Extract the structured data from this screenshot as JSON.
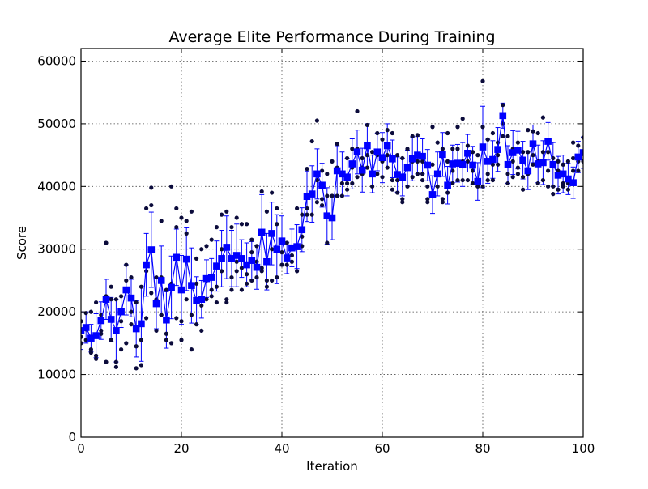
{
  "chart_data": {
    "type": "line",
    "title": "Average Elite Performance During Training",
    "xlabel": "Iteration",
    "ylabel": "Score",
    "xlim": [
      0,
      100
    ],
    "ylim": [
      0,
      62000
    ],
    "xticks": [
      0,
      20,
      40,
      60,
      80,
      100
    ],
    "yticks": [
      0,
      10000,
      20000,
      30000,
      40000,
      50000,
      60000
    ],
    "grid": true,
    "colors": {
      "mean_series": "#0000ff",
      "elite_points": "#0b0b3b",
      "axes": "#000000"
    },
    "series": [
      {
        "x": [
          0,
          1,
          2,
          3,
          4,
          5,
          6,
          7,
          8,
          9,
          10,
          11,
          12,
          13,
          14,
          15,
          16,
          17,
          18,
          19,
          20,
          21,
          22,
          23,
          24,
          25,
          26,
          27,
          28,
          29,
          30,
          31,
          32,
          33,
          34,
          35,
          36,
          37,
          38,
          39,
          40,
          41,
          42,
          43,
          44,
          45,
          46,
          47,
          48,
          49,
          50,
          51,
          52,
          53,
          54,
          55,
          56,
          57,
          58,
          59,
          60,
          61,
          62,
          63,
          64,
          65,
          66,
          67,
          68,
          69,
          70,
          71,
          72,
          73,
          74,
          75,
          76,
          77,
          78,
          79,
          80,
          81,
          82,
          83,
          84,
          85,
          86,
          87,
          88,
          89,
          90,
          91,
          92,
          93,
          94,
          95,
          96,
          97,
          98,
          99,
          100
        ],
        "y": [
          17000,
          17500,
          15800,
          16200,
          18600,
          22000,
          18800,
          17000,
          20000,
          23500,
          22200,
          17300,
          18100,
          27500,
          29900,
          21300,
          25000,
          18700,
          23900,
          28700,
          23500,
          28400,
          24200,
          21800,
          22000,
          25300,
          25500,
          27300,
          28500,
          30300,
          28500,
          29000,
          28500,
          27500,
          28200,
          27100,
          32700,
          28000,
          32500,
          30000,
          31300,
          28600,
          30200,
          30400,
          33100,
          38400,
          38800,
          42000,
          40200,
          35300,
          35000,
          42500,
          42000,
          41500,
          43600,
          45500,
          42600,
          46500,
          42000,
          45500,
          44600,
          46500,
          44400,
          41900,
          41500,
          43000,
          44400,
          45000,
          44800,
          43400,
          38700,
          42000,
          45100,
          40200,
          43600,
          43700,
          43500,
          45300,
          43400,
          40800,
          46300,
          44000,
          44300,
          45900,
          51300,
          43500,
          45400,
          45800,
          44200,
          42500,
          46800,
          43600,
          43800,
          47200,
          43500,
          41800,
          42000,
          41200,
          40600,
          44700,
          45400
        ],
        "err": [
          3000,
          2500,
          2200,
          3500,
          3000,
          3200,
          3500,
          5000,
          2500,
          4000,
          3000,
          4500,
          6000,
          5000,
          6000,
          4000,
          5500,
          4500,
          5000,
          4500,
          5500,
          5000,
          6000,
          3800,
          3000,
          3000,
          3000,
          4000,
          4500,
          5000,
          4500,
          5000,
          3000,
          3500,
          3000,
          3500,
          6000,
          4500,
          5000,
          5500,
          4000,
          2500,
          3000,
          3500,
          3500,
          4000,
          4500,
          4000,
          3500,
          4500,
          3500,
          4000,
          3500,
          3000,
          4000,
          3500,
          3500,
          3500,
          3000,
          3000,
          4000,
          3500,
          3000,
          2800,
          3000,
          2800,
          3500,
          3000,
          2800,
          2500,
          3000,
          3500,
          3500,
          3000,
          3000,
          3000,
          3500,
          3000,
          3000,
          3000,
          6500,
          3500,
          3000,
          3500,
          2000,
          3000,
          3500,
          3000,
          3000,
          3000,
          3000,
          3000,
          3500,
          3000,
          3500,
          3000,
          3000,
          2500,
          2500,
          2500,
          2500
        ]
      }
    ],
    "elite_points": [
      [
        0,
        16000
      ],
      [
        0,
        18500
      ],
      [
        0,
        15000
      ],
      [
        1,
        19800
      ],
      [
        1,
        17200
      ],
      [
        1,
        15500
      ],
      [
        2,
        20000
      ],
      [
        2,
        14000
      ],
      [
        2,
        13500
      ],
      [
        3,
        21500
      ],
      [
        3,
        13000
      ],
      [
        3,
        12500
      ],
      [
        4,
        19500
      ],
      [
        4,
        17000
      ],
      [
        4,
        16500
      ],
      [
        5,
        31000
      ],
      [
        5,
        22500
      ],
      [
        5,
        12000
      ],
      [
        6,
        24000
      ],
      [
        6,
        22000
      ],
      [
        6,
        15500
      ],
      [
        7,
        22000
      ],
      [
        7,
        12000
      ],
      [
        7,
        11200
      ],
      [
        8,
        22500
      ],
      [
        8,
        18500
      ],
      [
        8,
        14000
      ],
      [
        9,
        27500
      ],
      [
        9,
        25000
      ],
      [
        9,
        15000
      ],
      [
        10,
        25500
      ],
      [
        10,
        20000
      ],
      [
        10,
        18000
      ],
      [
        11,
        21500
      ],
      [
        11,
        14500
      ],
      [
        11,
        11000
      ],
      [
        12,
        24000
      ],
      [
        12,
        15500
      ],
      [
        12,
        11500
      ],
      [
        13,
        36500
      ],
      [
        13,
        26500
      ],
      [
        13,
        19000
      ],
      [
        14,
        39800
      ],
      [
        14,
        37000
      ],
      [
        14,
        23000
      ],
      [
        15,
        25500
      ],
      [
        15,
        22000
      ],
      [
        15,
        17000
      ],
      [
        16,
        34500
      ],
      [
        16,
        25500
      ],
      [
        16,
        19500
      ],
      [
        17,
        23500
      ],
      [
        17,
        16500
      ],
      [
        17,
        15500
      ],
      [
        18,
        40000
      ],
      [
        18,
        24500
      ],
      [
        18,
        15000
      ],
      [
        19,
        36500
      ],
      [
        19,
        33500
      ],
      [
        19,
        19000
      ],
      [
        20,
        35000
      ],
      [
        20,
        18500
      ],
      [
        20,
        15500
      ],
      [
        21,
        34500
      ],
      [
        21,
        32500
      ],
      [
        21,
        22000
      ],
      [
        22,
        36000
      ],
      [
        22,
        14000
      ],
      [
        22,
        19500
      ],
      [
        23,
        28500
      ],
      [
        23,
        24500
      ],
      [
        23,
        18000
      ],
      [
        24,
        30000
      ],
      [
        24,
        21000
      ],
      [
        24,
        17000
      ],
      [
        25,
        30500
      ],
      [
        25,
        25000
      ],
      [
        25,
        22000
      ],
      [
        26,
        31500
      ],
      [
        26,
        23500
      ],
      [
        26,
        22500
      ],
      [
        27,
        33500
      ],
      [
        27,
        24000
      ],
      [
        27,
        21500
      ],
      [
        28,
        35500
      ],
      [
        28,
        30000
      ],
      [
        28,
        26500
      ],
      [
        29,
        36000
      ],
      [
        29,
        22000
      ],
      [
        29,
        21500
      ],
      [
        30,
        33500
      ],
      [
        30,
        25500
      ],
      [
        30,
        23500
      ],
      [
        31,
        35000
      ],
      [
        31,
        28000
      ],
      [
        31,
        26500
      ],
      [
        32,
        34000
      ],
      [
        32,
        27000
      ],
      [
        32,
        23500
      ],
      [
        33,
        34000
      ],
      [
        33,
        26000
      ],
      [
        33,
        24500
      ],
      [
        34,
        31500
      ],
      [
        34,
        29500
      ],
      [
        34,
        25000
      ],
      [
        35,
        30500
      ],
      [
        35,
        28000
      ],
      [
        35,
        25500
      ],
      [
        36,
        39200
      ],
      [
        36,
        27000
      ],
      [
        36,
        26500
      ],
      [
        37,
        36000
      ],
      [
        37,
        24000
      ],
      [
        37,
        25000
      ],
      [
        38,
        39000
      ],
      [
        38,
        30000
      ],
      [
        38,
        25000
      ],
      [
        39,
        36500
      ],
      [
        39,
        34000
      ],
      [
        39,
        25500
      ],
      [
        40,
        31500
      ],
      [
        40,
        29500
      ],
      [
        40,
        27500
      ],
      [
        41,
        31000
      ],
      [
        41,
        28500
      ],
      [
        41,
        27500
      ],
      [
        42,
        30000
      ],
      [
        42,
        29000
      ],
      [
        42,
        28000
      ],
      [
        43,
        36500
      ],
      [
        43,
        30500
      ],
      [
        43,
        26500
      ],
      [
        44,
        35500
      ],
      [
        44,
        32000
      ],
      [
        44,
        30500
      ],
      [
        45,
        42800
      ],
      [
        45,
        36500
      ],
      [
        45,
        35500
      ],
      [
        46,
        47200
      ],
      [
        46,
        39000
      ],
      [
        46,
        35500
      ],
      [
        47,
        50500
      ],
      [
        47,
        41000
      ],
      [
        47,
        37500
      ],
      [
        48,
        42500
      ],
      [
        48,
        38000
      ],
      [
        48,
        37000
      ],
      [
        49,
        42000
      ],
      [
        49,
        38500
      ],
      [
        49,
        31000
      ],
      [
        50,
        44000
      ],
      [
        50,
        38500
      ],
      [
        50,
        35000
      ],
      [
        51,
        46800
      ],
      [
        51,
        43000
      ],
      [
        51,
        38500
      ],
      [
        52,
        42000
      ],
      [
        52,
        40500
      ],
      [
        52,
        38500
      ],
      [
        53,
        44500
      ],
      [
        53,
        40500
      ],
      [
        53,
        39500
      ],
      [
        54,
        46000
      ],
      [
        54,
        43000
      ],
      [
        54,
        40500
      ],
      [
        55,
        52000
      ],
      [
        55,
        46000
      ],
      [
        55,
        41500
      ],
      [
        56,
        44500
      ],
      [
        56,
        43000
      ],
      [
        56,
        42000
      ],
      [
        57,
        49800
      ],
      [
        57,
        45000
      ],
      [
        57,
        43000
      ],
      [
        58,
        45500
      ],
      [
        58,
        42000
      ],
      [
        58,
        40000
      ],
      [
        59,
        48500
      ],
      [
        59,
        45000
      ],
      [
        59,
        42000
      ],
      [
        60,
        47500
      ],
      [
        60,
        44000
      ],
      [
        60,
        41500
      ],
      [
        61,
        49000
      ],
      [
        61,
        45000
      ],
      [
        61,
        43000
      ],
      [
        62,
        48500
      ],
      [
        62,
        41000
      ],
      [
        62,
        39500
      ],
      [
        63,
        45000
      ],
      [
        63,
        41000
      ],
      [
        63,
        39000
      ],
      [
        64,
        44500
      ],
      [
        64,
        38000
      ],
      [
        64,
        37500
      ],
      [
        65,
        46000
      ],
      [
        65,
        43000
      ],
      [
        65,
        40000
      ],
      [
        66,
        48000
      ],
      [
        66,
        44000
      ],
      [
        66,
        41500
      ],
      [
        67,
        48200
      ],
      [
        67,
        44000
      ],
      [
        67,
        42000
      ],
      [
        68,
        44000
      ],
      [
        68,
        42000
      ],
      [
        68,
        41000
      ],
      [
        69,
        38000
      ],
      [
        69,
        37500
      ],
      [
        69,
        40000
      ],
      [
        70,
        49500
      ],
      [
        70,
        43500
      ],
      [
        70,
        38500
      ],
      [
        71,
        47000
      ],
      [
        71,
        42000
      ],
      [
        71,
        40000
      ],
      [
        72,
        46000
      ],
      [
        72,
        38000
      ],
      [
        72,
        37500
      ],
      [
        73,
        48500
      ],
      [
        73,
        44000
      ],
      [
        73,
        39000
      ],
      [
        74,
        46000
      ],
      [
        74,
        42500
      ],
      [
        74,
        40500
      ],
      [
        75,
        49500
      ],
      [
        75,
        46000
      ],
      [
        75,
        41000
      ],
      [
        76,
        50800
      ],
      [
        76,
        44000
      ],
      [
        76,
        41000
      ],
      [
        77,
        46500
      ],
      [
        77,
        44000
      ],
      [
        77,
        41000
      ],
      [
        78,
        45500
      ],
      [
        78,
        42500
      ],
      [
        78,
        40500
      ],
      [
        79,
        45000
      ],
      [
        79,
        41000
      ],
      [
        79,
        40000
      ],
      [
        80,
        56800
      ],
      [
        80,
        49500
      ],
      [
        80,
        40000
      ],
      [
        81,
        47500
      ],
      [
        81,
        42000
      ],
      [
        81,
        41000
      ],
      [
        82,
        48500
      ],
      [
        82,
        43500
      ],
      [
        82,
        41000
      ],
      [
        83,
        47000
      ],
      [
        83,
        45000
      ],
      [
        83,
        43500
      ],
      [
        84,
        53000
      ],
      [
        84,
        50000
      ],
      [
        84,
        48000
      ],
      [
        85,
        48000
      ],
      [
        85,
        42000
      ],
      [
        85,
        40500
      ],
      [
        86,
        46000
      ],
      [
        86,
        44000
      ],
      [
        86,
        41500
      ],
      [
        87,
        47000
      ],
      [
        87,
        43000
      ],
      [
        87,
        42000
      ],
      [
        88,
        45500
      ],
      [
        88,
        41500
      ],
      [
        88,
        39500
      ],
      [
        89,
        49000
      ],
      [
        89,
        45500
      ],
      [
        89,
        42000
      ],
      [
        90,
        48800
      ],
      [
        90,
        45000
      ],
      [
        90,
        43500
      ],
      [
        91,
        48500
      ],
      [
        91,
        44000
      ],
      [
        91,
        40500
      ],
      [
        92,
        51000
      ],
      [
        92,
        45500
      ],
      [
        92,
        41000
      ],
      [
        93,
        45500
      ],
      [
        93,
        42500
      ],
      [
        93,
        40000
      ],
      [
        94,
        44500
      ],
      [
        94,
        40000
      ],
      [
        94,
        38800
      ],
      [
        95,
        44000
      ],
      [
        95,
        42500
      ],
      [
        95,
        39500
      ],
      [
        96,
        43500
      ],
      [
        96,
        40500
      ],
      [
        96,
        40000
      ],
      [
        97,
        44000
      ],
      [
        97,
        40500
      ],
      [
        97,
        39500
      ],
      [
        98,
        47000
      ],
      [
        98,
        44500
      ],
      [
        98,
        42500
      ],
      [
        99,
        46500
      ],
      [
        99,
        44000
      ],
      [
        99,
        42500
      ],
      [
        100,
        47800
      ],
      [
        100,
        45500
      ],
      [
        100,
        44000
      ]
    ]
  }
}
